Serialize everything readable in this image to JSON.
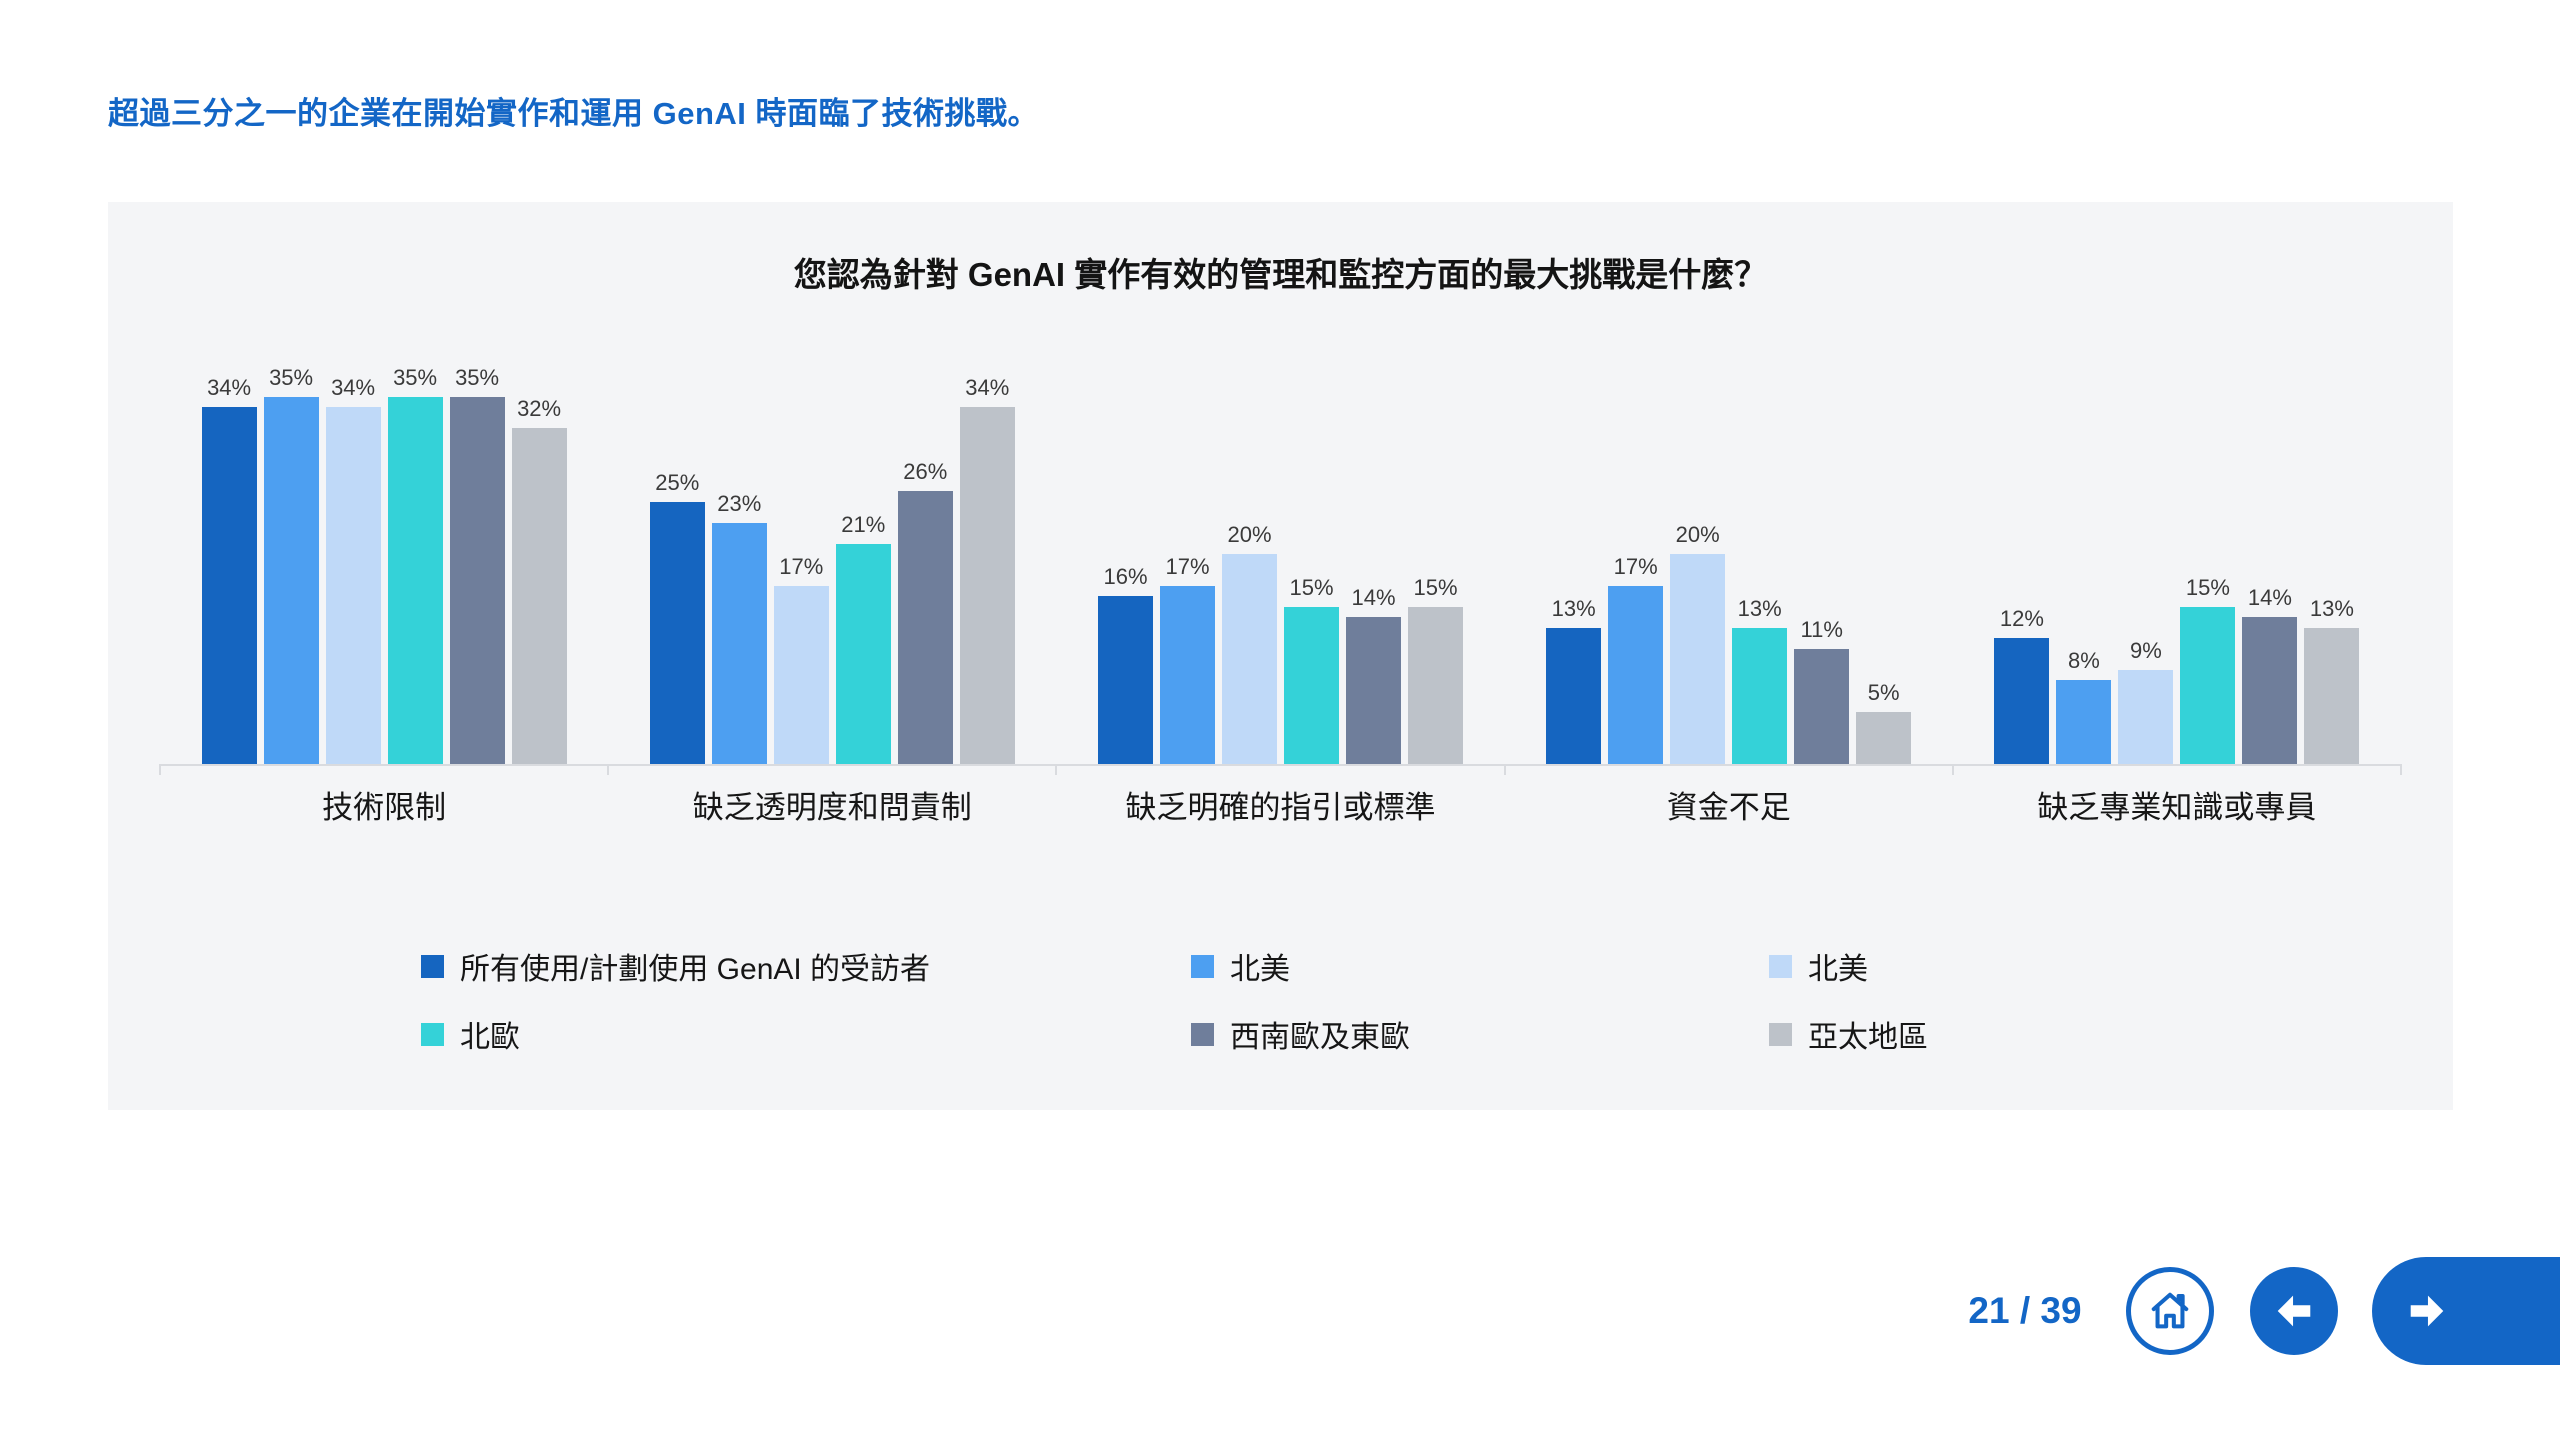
{
  "headline": "超過三分之一的企業在開始實作和運用 GenAI 時面臨了技術挑戰。",
  "colors": {
    "accent_blue": "#1366C6",
    "panel_background": "#F4F5F7",
    "axis_line": "#D9DBDF"
  },
  "chart_data": {
    "type": "bar",
    "title": "您認為針對 GenAI 實作有效的管理和監控方面的最大挑戰是什麼？",
    "categories": [
      "技術限制",
      "缺乏透明度和問責制",
      "缺乏明確的指引或標準",
      "資金不足",
      "缺乏專業知識或專員"
    ],
    "series": [
      {
        "name": "所有使用/計劃使用 GenAI 的受訪者",
        "color": "#1565C0",
        "values": [
          34,
          25,
          16,
          13,
          12
        ]
      },
      {
        "name": "北美",
        "color": "#4D9FF1",
        "values": [
          35,
          23,
          17,
          17,
          8
        ]
      },
      {
        "name": "北美",
        "color": "#BFD9F8",
        "values": [
          34,
          17,
          20,
          20,
          9
        ]
      },
      {
        "name": "北歐",
        "color": "#34D2D8",
        "values": [
          35,
          21,
          15,
          13,
          15
        ]
      },
      {
        "name": "西南歐及東歐",
        "color": "#6F7E9B",
        "values": [
          35,
          26,
          14,
          11,
          14
        ]
      },
      {
        "name": "亞太地區",
        "color": "#BDC2C9",
        "values": [
          32,
          34,
          15,
          5,
          13
        ]
      }
    ],
    "value_suffix": "%",
    "ylim": [
      0,
      38
    ],
    "grid": false,
    "legend_position": "bottom"
  },
  "footer": {
    "page_indicator": "21 / 39"
  },
  "icons": {
    "home": "home-icon",
    "prev": "arrow-left-icon",
    "next": "arrow-right-icon"
  }
}
